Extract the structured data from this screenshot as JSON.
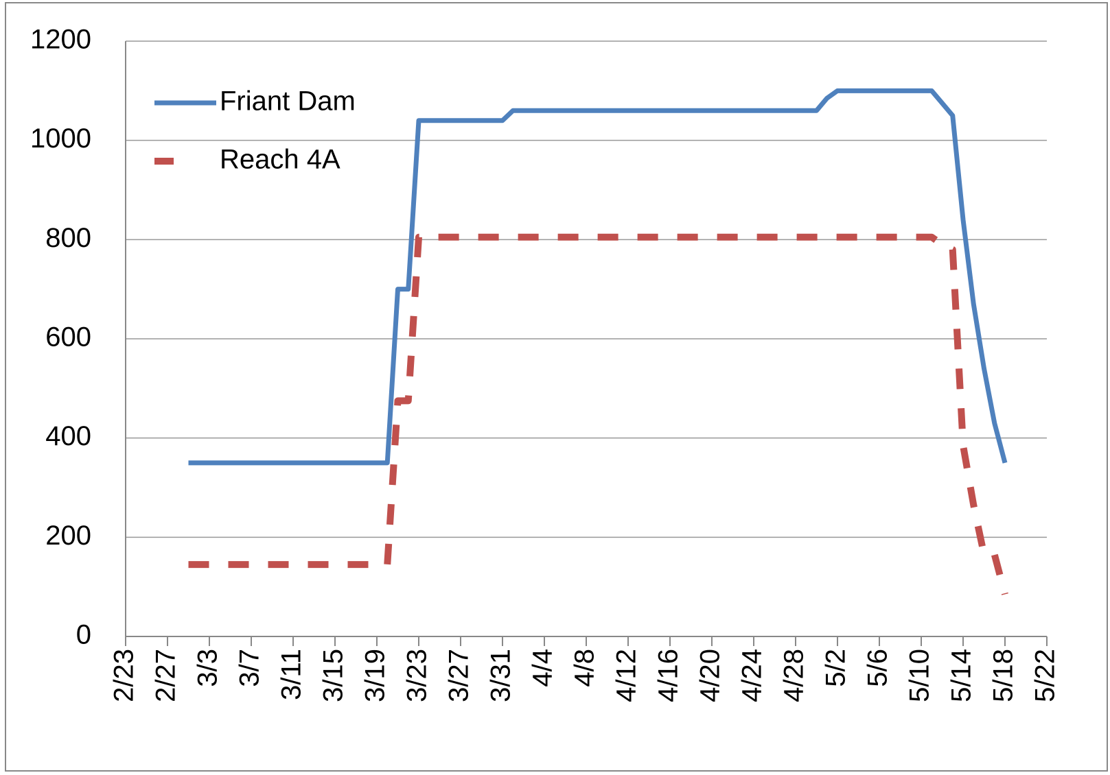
{
  "chart_data": {
    "type": "line",
    "categories": [
      "2/23",
      null,
      null,
      null,
      "2/27",
      null,
      null,
      null,
      "3/3",
      null,
      null,
      null,
      "3/7",
      null,
      null,
      null,
      "3/11",
      null,
      null,
      null,
      "3/15",
      null,
      null,
      null,
      "3/19",
      null,
      null,
      null,
      "3/23",
      null,
      null,
      null,
      "3/27",
      null,
      null,
      null,
      "3/31",
      null,
      null,
      null,
      "4/4",
      null,
      null,
      null,
      "4/8",
      null,
      null,
      null,
      "4/12",
      null,
      null,
      null,
      "4/16",
      null,
      null,
      null,
      "4/20",
      null,
      null,
      null,
      "4/24",
      null,
      null,
      null,
      "4/28",
      null,
      null,
      null,
      "5/2",
      null,
      null,
      null,
      "5/6",
      null,
      null,
      null,
      "5/10",
      null,
      null,
      null,
      "5/14",
      null,
      null,
      null,
      "5/18",
      null,
      null,
      null,
      "5/22"
    ],
    "series": [
      {
        "name": "Friant Dam",
        "color": "#4f81bd",
        "style": "solid",
        "values": [
          null,
          null,
          null,
          null,
          null,
          null,
          350,
          350,
          350,
          350,
          350,
          350,
          350,
          350,
          350,
          350,
          350,
          350,
          350,
          350,
          350,
          350,
          350,
          350,
          350,
          350,
          700,
          700,
          1040,
          1040,
          1040,
          1040,
          1040,
          1040,
          1040,
          1040,
          1040,
          1060,
          1060,
          1060,
          1060,
          1060,
          1060,
          1060,
          1060,
          1060,
          1060,
          1060,
          1060,
          1060,
          1060,
          1060,
          1060,
          1060,
          1060,
          1060,
          1060,
          1060,
          1060,
          1060,
          1060,
          1060,
          1060,
          1060,
          1060,
          1060,
          1060,
          1085,
          1100,
          1100,
          1100,
          1100,
          1100,
          1100,
          1100,
          1100,
          1100,
          1100,
          1075,
          1050,
          840,
          670,
          540,
          430,
          350,
          null,
          null,
          null,
          null
        ]
      },
      {
        "name": "Reach 4A",
        "color": "#c0504d",
        "style": "dashed",
        "values": [
          null,
          null,
          null,
          null,
          null,
          null,
          145,
          145,
          145,
          145,
          145,
          145,
          145,
          145,
          145,
          145,
          145,
          145,
          145,
          145,
          145,
          145,
          145,
          145,
          145,
          145,
          475,
          475,
          805,
          805,
          805,
          805,
          805,
          805,
          805,
          805,
          805,
          805,
          805,
          805,
          805,
          805,
          805,
          805,
          805,
          805,
          805,
          805,
          805,
          805,
          805,
          805,
          805,
          805,
          805,
          805,
          805,
          805,
          805,
          805,
          805,
          805,
          805,
          805,
          805,
          805,
          805,
          805,
          805,
          805,
          805,
          805,
          805,
          805,
          805,
          805,
          805,
          805,
          790,
          780,
          385,
          265,
          165,
          165,
          85,
          null,
          null,
          null,
          null
        ]
      }
    ],
    "ylim": [
      0,
      1200
    ],
    "yticks": [
      0,
      200,
      400,
      600,
      800,
      1000,
      1200
    ],
    "grid": true,
    "legend": "upper left"
  }
}
